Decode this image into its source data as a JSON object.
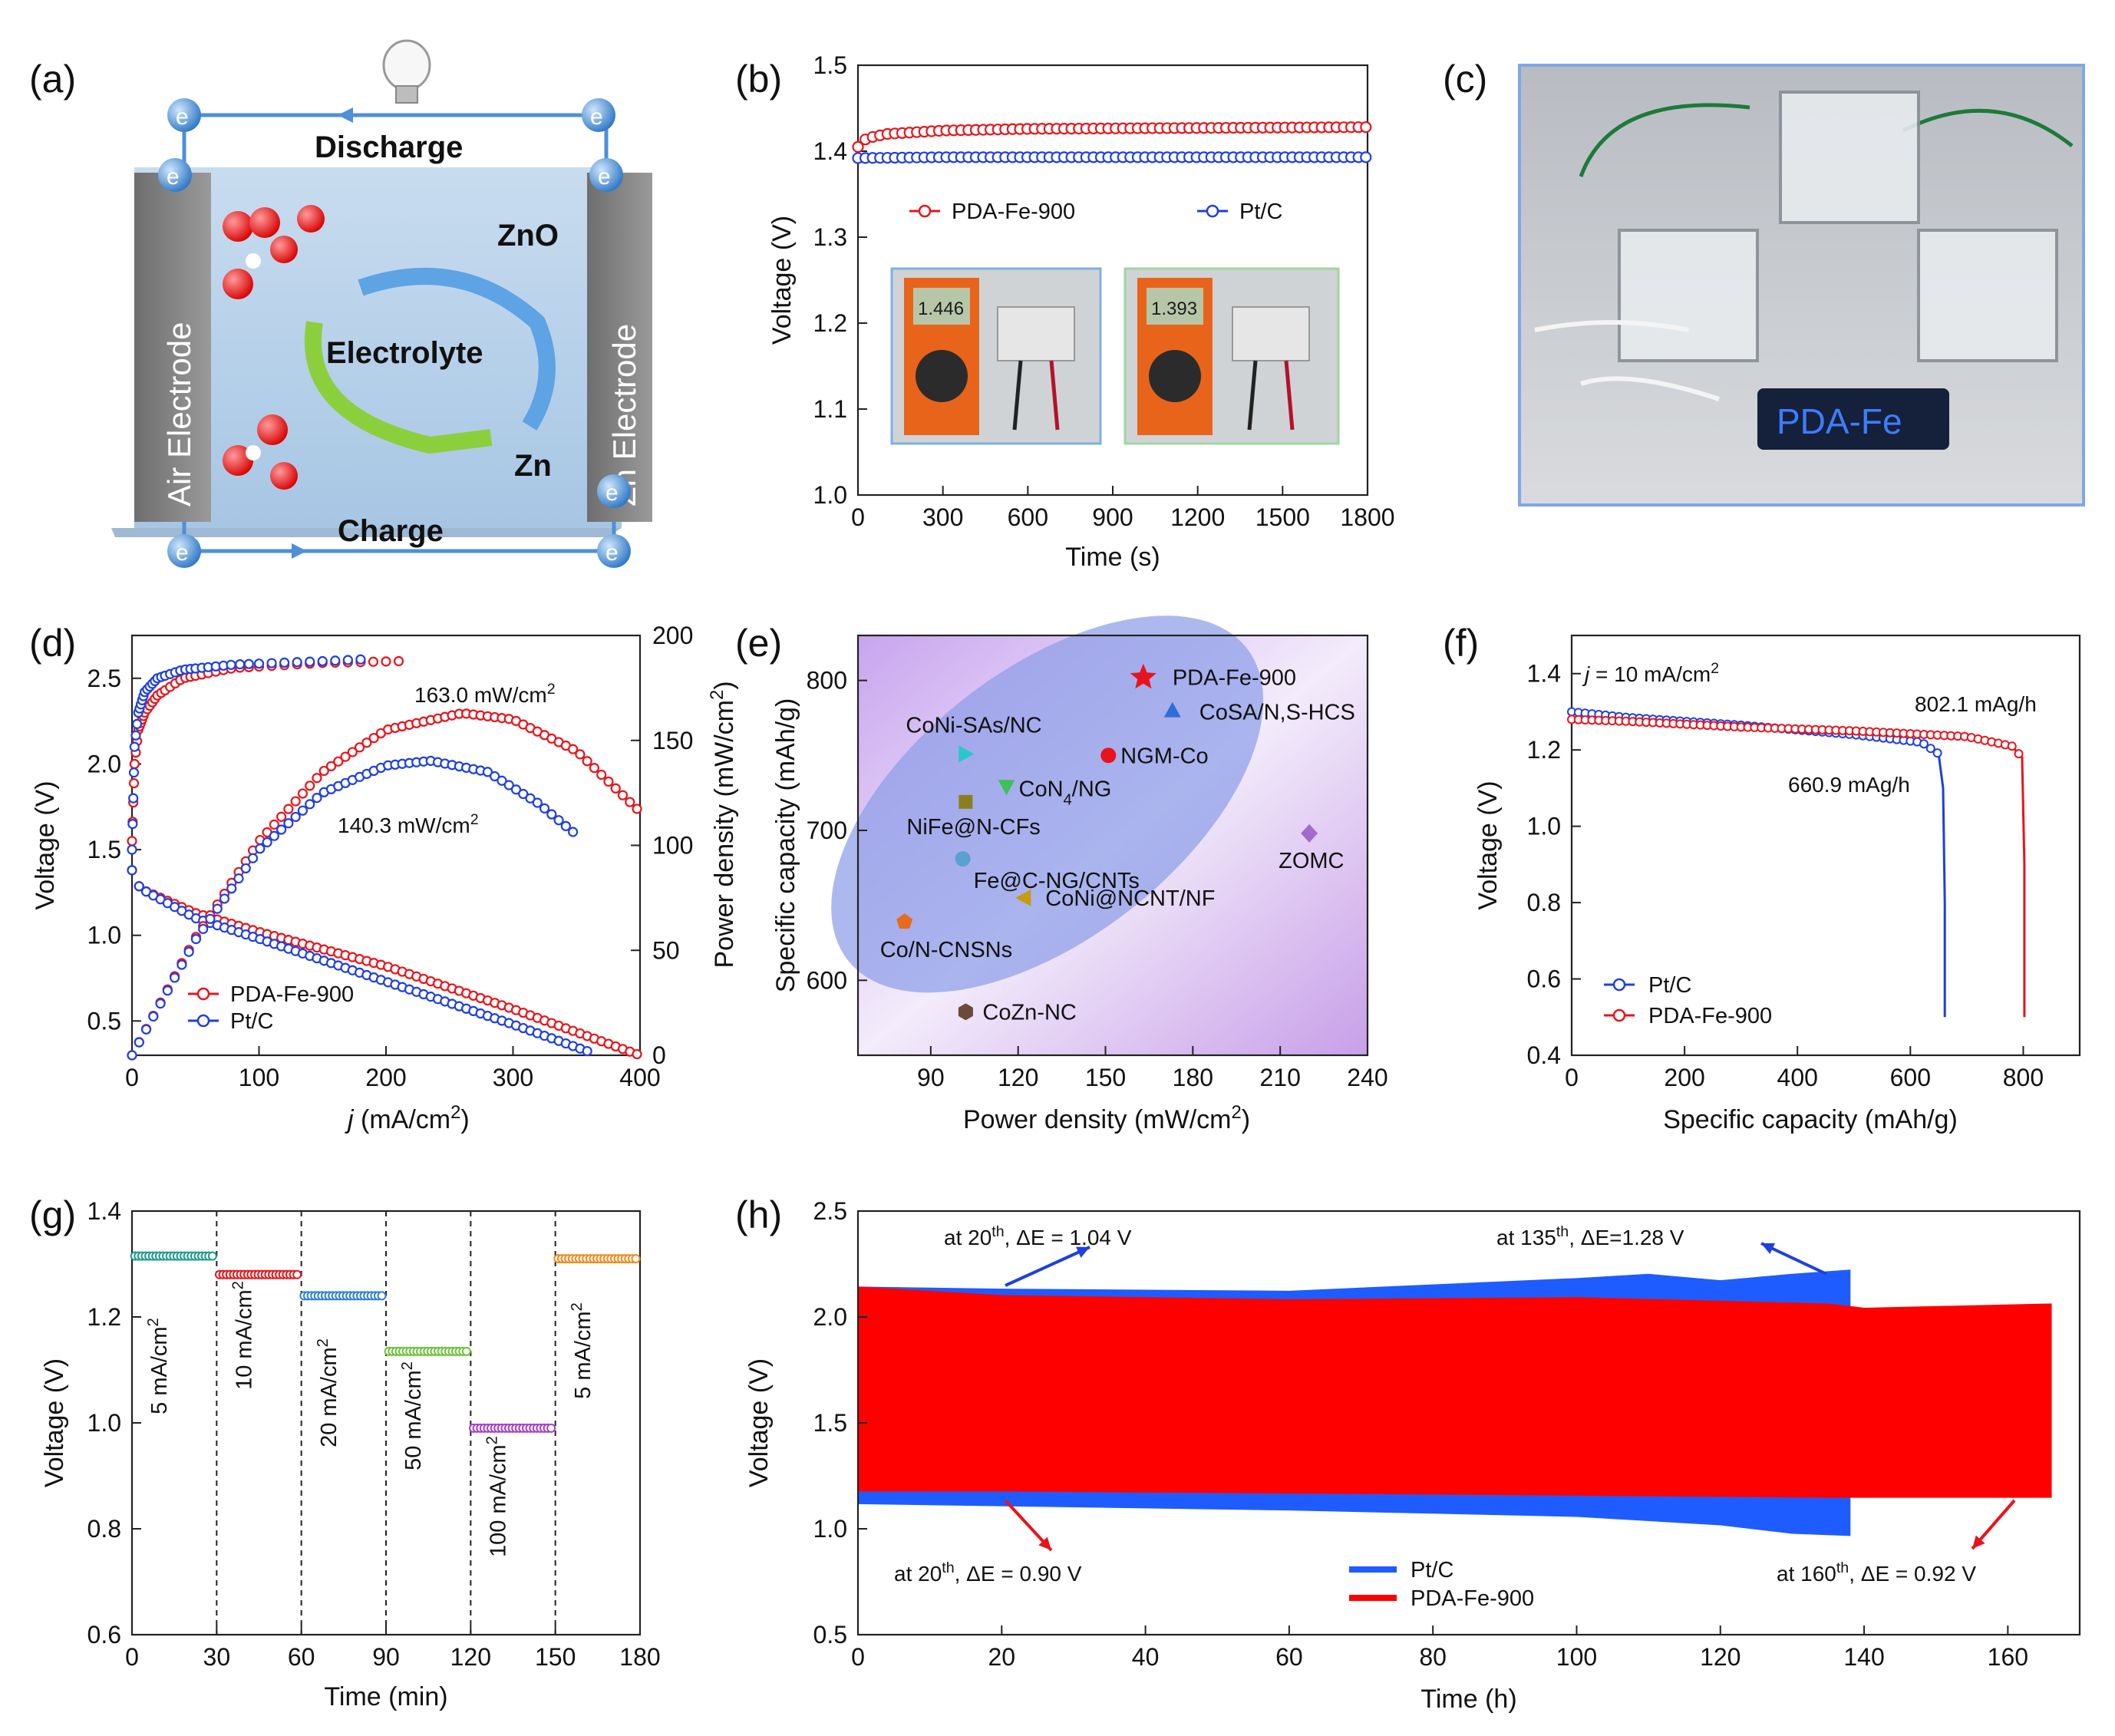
{
  "panel_labels": [
    "(a)",
    "(b)",
    "(c)",
    "(d)",
    "(e)",
    "(f)",
    "(g)",
    "(h)"
  ],
  "diagram_a": {
    "top": "Discharge",
    "bottom": "Charge",
    "left_electrode": "Air Electrode",
    "right_electrode": "Zn Electrode",
    "center": "Electrolyte",
    "zno": "ZnO",
    "zn": "Zn",
    "electron": "e"
  },
  "photo_c": {
    "display_text": "PDA-Fe"
  },
  "photo_b": {
    "meter1": "1.446",
    "meter2": "1.393"
  },
  "chart_data": [
    {
      "panel": "b",
      "type": "line",
      "xlabel": "Time (s)",
      "ylabel": "Voltage (V)",
      "xlim": [
        0,
        1800
      ],
      "ylim": [
        1.0,
        1.5
      ],
      "xticks": [
        "0",
        "300",
        "600",
        "900",
        "1200",
        "1500",
        "1800"
      ],
      "yticks": [
        "1.0",
        "1.1",
        "1.2",
        "1.3",
        "1.4",
        "1.5"
      ],
      "series": [
        {
          "name": "PDA-Fe-900",
          "color": "#e8141b",
          "x": [
            0,
            30,
            100,
            300,
            600,
            1200,
            1800
          ],
          "y": [
            1.405,
            1.415,
            1.42,
            1.424,
            1.426,
            1.427,
            1.428
          ]
        },
        {
          "name": "Pt/C",
          "color": "#1f3fe0",
          "x": [
            0,
            300,
            900,
            1800
          ],
          "y": [
            1.392,
            1.393,
            1.393,
            1.393
          ]
        }
      ]
    },
    {
      "panel": "d",
      "type": "line",
      "xlabel": "j (mA/cm2)",
      "ylabel": "Voltage (V)",
      "ylabel2": "Power density (mW/cm2)",
      "xlim": [
        0,
        400
      ],
      "ylim": [
        0.3,
        2.75
      ],
      "ylim2": [
        0,
        200
      ],
      "xticks": [
        "0",
        "100",
        "200",
        "300",
        "400"
      ],
      "yticks": [
        "0.5",
        "1.0",
        "1.5",
        "2.0",
        "2.5"
      ],
      "yticks2": [
        "0",
        "50",
        "100",
        "150",
        "200"
      ],
      "annotations": [
        "163.0 mW/cm2",
        "140.3 mW/cm2"
      ],
      "series": [
        {
          "name": "PDA-Fe-900",
          "color": "#e8141b",
          "kind": "charge_voltage",
          "x": [
            0,
            2,
            5,
            10,
            20,
            40,
            80,
            150,
            210
          ],
          "y": [
            1.55,
            2.0,
            2.2,
            2.3,
            2.4,
            2.5,
            2.56,
            2.59,
            2.6
          ]
        },
        {
          "name": "Pt/C",
          "color": "#1f3fe0",
          "kind": "charge_voltage",
          "x": [
            0,
            2,
            5,
            10,
            20,
            40,
            80,
            150,
            180
          ],
          "y": [
            1.5,
            2.1,
            2.3,
            2.42,
            2.5,
            2.55,
            2.58,
            2.6,
            2.61
          ]
        },
        {
          "name": "PDA-Fe-900",
          "color": "#e8141b",
          "kind": "discharge_voltage",
          "x": [
            0,
            2,
            5,
            10,
            50,
            100,
            200,
            300,
            400
          ],
          "y": [
            1.38,
            1.33,
            1.29,
            1.26,
            1.13,
            1.02,
            0.82,
            0.57,
            0.3
          ]
        },
        {
          "name": "Pt/C",
          "color": "#1f3fe0",
          "kind": "discharge_voltage",
          "x": [
            0,
            2,
            5,
            10,
            50,
            100,
            200,
            300,
            360
          ],
          "y": [
            1.38,
            1.33,
            1.29,
            1.26,
            1.1,
            0.98,
            0.73,
            0.48,
            0.32
          ]
        },
        {
          "name": "PDA-Fe-900",
          "color": "#e8141b",
          "kind": "power",
          "x": [
            0,
            50,
            100,
            150,
            200,
            260,
            300,
            350,
            400
          ],
          "y": [
            0,
            56,
            102,
            135,
            155,
            163,
            160,
            145,
            116
          ]
        },
        {
          "name": "Pt/C",
          "color": "#1f3fe0",
          "kind": "power",
          "x": [
            0,
            50,
            100,
            150,
            200,
            235,
            280,
            320,
            350
          ],
          "y": [
            0,
            55,
            98,
            125,
            138,
            140.3,
            135,
            120,
            105
          ]
        }
      ],
      "legend": [
        "PDA-Fe-900",
        "Pt/C"
      ]
    },
    {
      "panel": "e",
      "type": "scatter",
      "xlabel": "Power density (mW/cm2)",
      "ylabel": "Specific capacity (mAh/g)",
      "xlim": [
        65,
        240
      ],
      "ylim": [
        550,
        830
      ],
      "xticks": [
        "90",
        "120",
        "150",
        "180",
        "210",
        "240"
      ],
      "yticks": [
        "600",
        "700",
        "800"
      ],
      "points": [
        {
          "label": "PDA-Fe-900",
          "x": 163,
          "y": 802,
          "marker": "star",
          "color": "#e8141b"
        },
        {
          "label": "CoSA/N,S-HCS",
          "x": 173,
          "y": 780,
          "marker": "triangle",
          "color": "#2e6fd6"
        },
        {
          "label": "NGM-Co",
          "x": 151,
          "y": 750,
          "marker": "circle",
          "color": "#e8141b"
        },
        {
          "label": "CoNi-SAs/NC",
          "x": 102,
          "y": 751,
          "marker": "triangle-right",
          "color": "#28c8c8"
        },
        {
          "label": "CoN4/NG",
          "x": 116,
          "y": 729,
          "marker": "triangle-down",
          "color": "#3fbf5a"
        },
        {
          "label": "NiFe@N-CFs",
          "x": 102,
          "y": 719,
          "marker": "square",
          "color": "#8a7f1c"
        },
        {
          "label": "Fe@C-NG/CNTs",
          "x": 101,
          "y": 681,
          "marker": "sphere",
          "color": "#5aa0d0"
        },
        {
          "label": "CoNi@NCNT/NF",
          "x": 122,
          "y": 655,
          "marker": "triangle-left",
          "color": "#c89a10"
        },
        {
          "label": "Co/N-CNSNs",
          "x": 81,
          "y": 639,
          "marker": "pentagon",
          "color": "#e86a1c"
        },
        {
          "label": "ZOMC",
          "x": 220,
          "y": 698,
          "marker": "diamond",
          "color": "#a36ad0"
        },
        {
          "label": "CoZn-NC",
          "x": 102,
          "y": 579,
          "marker": "hexagon",
          "color": "#6b4a3a"
        }
      ]
    },
    {
      "panel": "f",
      "type": "line",
      "xlabel": "Specific capacity (mAh/g)",
      "ylabel": "Voltage (V)",
      "xlim": [
        0,
        900
      ],
      "ylim": [
        0.4,
        1.5
      ],
      "xticks": [
        "0",
        "200",
        "400",
        "600",
        "800"
      ],
      "yticks": [
        "0.4",
        "0.6",
        "0.8",
        "1.0",
        "1.2",
        "1.4"
      ],
      "condition": "j = 10 mA/cm2",
      "annotations": [
        "802.1 mAg/h",
        "660.9 mAg/h"
      ],
      "series": [
        {
          "name": "Pt/C",
          "color": "#1f3fe0",
          "x": [
            0,
            100,
            300,
            500,
            620,
            650,
            658,
            661,
            661
          ],
          "y": [
            1.3,
            1.285,
            1.265,
            1.24,
            1.22,
            1.19,
            1.1,
            0.8,
            0.5
          ]
        },
        {
          "name": "PDA-Fe-900",
          "color": "#e8141b",
          "x": [
            0,
            100,
            300,
            500,
            700,
            780,
            798,
            802,
            802
          ],
          "y": [
            1.28,
            1.275,
            1.26,
            1.25,
            1.235,
            1.21,
            1.18,
            0.9,
            0.5
          ]
        }
      ],
      "legend": [
        "Pt/C",
        "PDA-Fe-900"
      ]
    },
    {
      "panel": "g",
      "type": "line",
      "xlabel": "Time (min)",
      "ylabel": "Voltage (V)",
      "xlim": [
        0,
        180
      ],
      "ylim": [
        0.6,
        1.4
      ],
      "xticks": [
        "0",
        "30",
        "60",
        "90",
        "120",
        "150",
        "180"
      ],
      "yticks": [
        "0.6",
        "0.8",
        "1.0",
        "1.2",
        "1.4"
      ],
      "steps": [
        {
          "label": "5 mA/cm2",
          "x0": 0,
          "x1": 30,
          "v": 1.315,
          "color": "#1e9b8a"
        },
        {
          "label": "10 mA/cm2",
          "x0": 30,
          "x1": 60,
          "v": 1.28,
          "color": "#e8141b"
        },
        {
          "label": "20 mA/cm2",
          "x0": 60,
          "x1": 90,
          "v": 1.24,
          "color": "#2f7fd0"
        },
        {
          "label": "50 mA/cm2",
          "x0": 90,
          "x1": 120,
          "v": 1.135,
          "color": "#6cc23a"
        },
        {
          "label": "100 mA/cm2",
          "x0": 120,
          "x1": 150,
          "v": 0.99,
          "color": "#a640c8"
        },
        {
          "label": "5 mA/cm2",
          "x0": 150,
          "x1": 180,
          "v": 1.31,
          "color": "#f08a1a"
        }
      ]
    },
    {
      "panel": "h",
      "type": "area",
      "xlabel": "Time (h)",
      "ylabel": "Voltage (V)",
      "xlim": [
        0,
        170
      ],
      "ylim": [
        0.5,
        2.5
      ],
      "xticks": [
        "0",
        "20",
        "40",
        "60",
        "80",
        "100",
        "120",
        "140",
        "160"
      ],
      "yticks": [
        "0.5",
        "1.0",
        "1.5",
        "2.0",
        "2.5"
      ],
      "series": [
        {
          "name": "Pt/C",
          "color": "#1f5cff",
          "upper": {
            "x": [
              0,
              20,
              60,
              100,
              110,
              120,
              130,
              138
            ],
            "y": [
              2.14,
              2.13,
              2.12,
              2.18,
              2.2,
              2.17,
              2.2,
              2.22
            ]
          },
          "lower": {
            "x": [
              0,
              20,
              60,
              100,
              120,
              130,
              138
            ],
            "y": [
              1.12,
              1.11,
              1.09,
              1.06,
              1.02,
              0.98,
              0.97
            ]
          }
        },
        {
          "name": "PDA-Fe-900",
          "color": "#ff0000",
          "upper": {
            "x": [
              0,
              20,
              60,
              100,
              135,
              140,
              166
            ],
            "y": [
              2.14,
              2.1,
              2.08,
              2.09,
              2.06,
              2.04,
              2.06
            ]
          },
          "lower": {
            "x": [
              0,
              20,
              60,
              100,
              135,
              140,
              166
            ],
            "y": [
              1.18,
              1.18,
              1.17,
              1.16,
              1.15,
              1.15,
              1.15
            ]
          }
        }
      ],
      "annotations": {
        "a1": "at 20th, ΔE = 1.04 V",
        "a2": "at 135th, ΔE=1.28 V",
        "a3": "at 20th, ΔE = 0.90 V",
        "a4": "at 160th, ΔE = 0.92 V"
      },
      "legend": [
        "Pt/C",
        "PDA-Fe-900"
      ]
    }
  ]
}
